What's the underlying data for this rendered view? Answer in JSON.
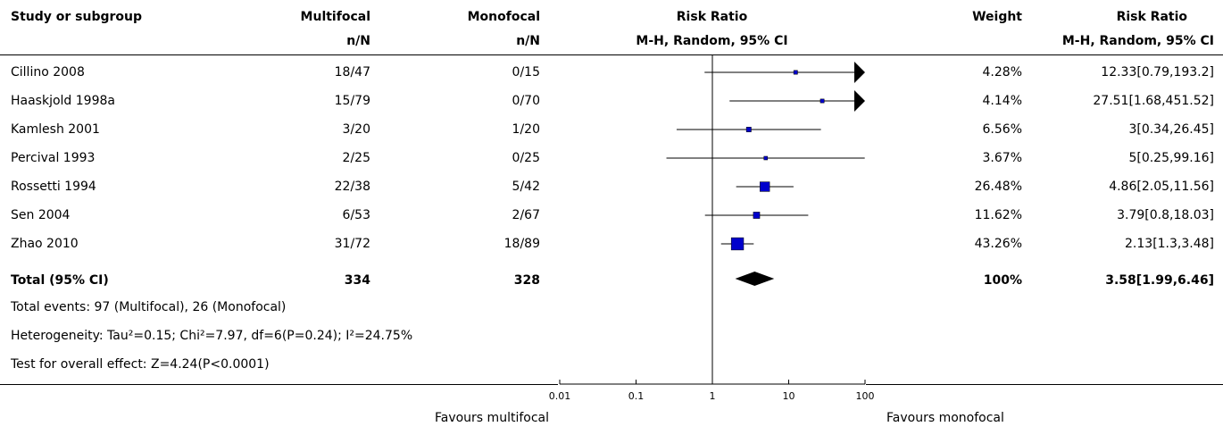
{
  "headers": {
    "study": "Study or subgroup",
    "exp": "Multifocal",
    "exp_sub": "n/N",
    "ctl": "Monofocal",
    "ctl_sub": "n/N",
    "rr_plot": "Risk Ratio",
    "rr_plot_sub": "M-H, Random, 95% CI",
    "weight": "Weight",
    "rr_text": "Risk Ratio",
    "rr_text_sub": "M-H, Random, 95% CI"
  },
  "studies": [
    {
      "name": "Cillino 2008",
      "exp": "18/47",
      "ctl": "0/15",
      "weight": "4.28%",
      "rr": "12.33[0.79,193.2]"
    },
    {
      "name": "Haaskjold 1998a",
      "exp": "15/79",
      "ctl": "0/70",
      "weight": "4.14%",
      "rr": "27.51[1.68,451.52]"
    },
    {
      "name": "Kamlesh 2001",
      "exp": "3/20",
      "ctl": "1/20",
      "weight": "6.56%",
      "rr": "3[0.34,26.45]"
    },
    {
      "name": "Percival 1993",
      "exp": "2/25",
      "ctl": "0/25",
      "weight": "3.67%",
      "rr": "5[0.25,99.16]"
    },
    {
      "name": "Rossetti 1994",
      "exp": "22/38",
      "ctl": "5/42",
      "weight": "26.48%",
      "rr": "4.86[2.05,11.56]"
    },
    {
      "name": "Sen 2004",
      "exp": "6/53",
      "ctl": "2/67",
      "weight": "11.62%",
      "rr": "3.79[0.8,18.03]"
    },
    {
      "name": "Zhao 2010",
      "exp": "31/72",
      "ctl": "18/89",
      "weight": "43.26%",
      "rr": "2.13[1.3,3.48]"
    }
  ],
  "total": {
    "label": "Total (95% CI)",
    "exp": "334",
    "ctl": "328",
    "weight": "100%",
    "rr": "3.58[1.99,6.46]"
  },
  "footer_notes": [
    "Total events: 97 (Multifocal), 26 (Monofocal)",
    "Heterogeneity: Tau²=0.15; Chi²=7.97, df=6(P=0.24); I²=24.75%",
    "Test for overall effect: Z=4.24(P<0.0001)"
  ],
  "axis": {
    "favours_left": "Favours multifocal",
    "favours_right": "Favours monofocal"
  },
  "chart_data": {
    "type": "forest",
    "scale": "log",
    "xlim": [
      0.01,
      100
    ],
    "ticks": [
      0.01,
      0.1,
      1,
      10,
      100
    ],
    "tick_labels": [
      "0.01",
      "0.1",
      "1",
      "10",
      "100"
    ],
    "null_line": 1,
    "marker_color": "#0000cc",
    "studies": [
      {
        "name": "Cillino 2008",
        "rr": 12.33,
        "lo": 0.79,
        "hi": 193.2,
        "weight": 4.28
      },
      {
        "name": "Haaskjold 1998a",
        "rr": 27.51,
        "lo": 1.68,
        "hi": 451.52,
        "weight": 4.14
      },
      {
        "name": "Kamlesh 2001",
        "rr": 3,
        "lo": 0.34,
        "hi": 26.45,
        "weight": 6.56
      },
      {
        "name": "Percival 1993",
        "rr": 5,
        "lo": 0.25,
        "hi": 99.16,
        "weight": 3.67
      },
      {
        "name": "Rossetti 1994",
        "rr": 4.86,
        "lo": 2.05,
        "hi": 11.56,
        "weight": 26.48
      },
      {
        "name": "Sen 2004",
        "rr": 3.79,
        "lo": 0.8,
        "hi": 18.03,
        "weight": 11.62
      },
      {
        "name": "Zhao 2010",
        "rr": 2.13,
        "lo": 1.3,
        "hi": 3.48,
        "weight": 43.26
      }
    ],
    "pooled": {
      "rr": 3.58,
      "lo": 1.99,
      "hi": 6.46
    }
  }
}
